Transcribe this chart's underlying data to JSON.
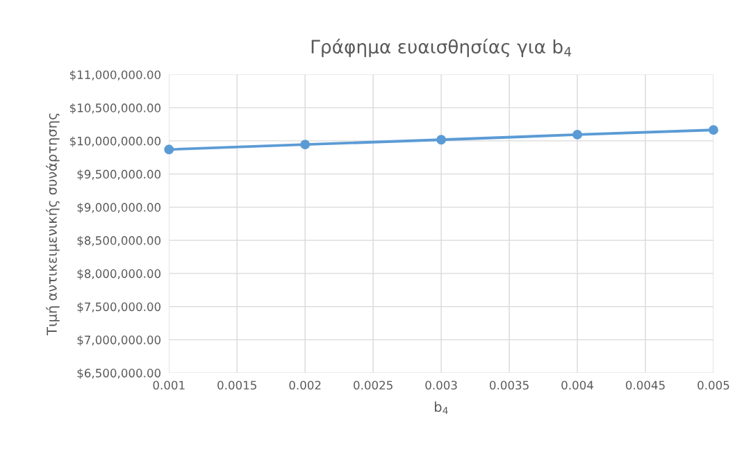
{
  "chart_data": {
    "type": "line",
    "title": "Γράφημα ευαισθησίας για b$_{4}$",
    "xlabel": "b$_{4}$",
    "ylabel": "Τιμή αντικειμενικής συνάρτησης",
    "x": [
      0.001,
      0.002,
      0.003,
      0.004,
      0.005
    ],
    "series": [
      {
        "color": "#5b9bd5",
        "values": [
          9870000,
          9945000,
          10017000,
          10094000,
          10165000
        ]
      }
    ],
    "xlim": [
      0.001,
      0.005
    ],
    "xticks": [
      0.001,
      0.0015,
      0.002,
      0.0025,
      0.003,
      0.0035,
      0.004,
      0.0045,
      0.005
    ],
    "ylim": [
      6500000,
      11000000
    ],
    "yticks": [
      {
        "value": 6500000,
        "label": "$6,500,000.00"
      },
      {
        "value": 7000000,
        "label": "$7,000,000.00"
      },
      {
        "value": 7500000,
        "label": "$7,500,000.00"
      },
      {
        "value": 8000000,
        "label": "$8,000,000.00"
      },
      {
        "value": 8500000,
        "label": "$8,500,000.00"
      },
      {
        "value": 9000000,
        "label": "$9,000,000.00"
      },
      {
        "value": 9500000,
        "label": "$9,500,000.00"
      },
      {
        "value": 10000000,
        "label": "$10,000,000.00"
      },
      {
        "value": 10500000,
        "label": "$10,500,000.00"
      },
      {
        "value": 11000000,
        "label": "$11,000,000.00"
      }
    ],
    "grid": true,
    "marker": "circle",
    "line_style": "solid",
    "legend": false
  }
}
